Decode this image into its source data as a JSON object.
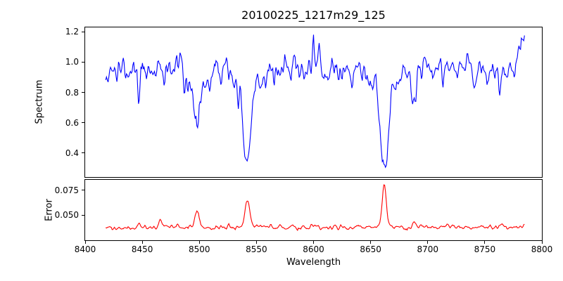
{
  "chart_data": {
    "type": "line",
    "title": "20100225_1217m29_125",
    "xlabel": "Wavelength",
    "xlim": [
      8400,
      8800
    ],
    "x_data_range": [
      8418,
      8785
    ],
    "background_color": "#ffffff",
    "axis_color": "#000000",
    "grid": false,
    "legend": "none",
    "x_ticks": [
      {
        "value": 8400,
        "label": "8400"
      },
      {
        "value": 8450,
        "label": "8450"
      },
      {
        "value": 8500,
        "label": "8500"
      },
      {
        "value": 8550,
        "label": "8550"
      },
      {
        "value": 8600,
        "label": "8600"
      },
      {
        "value": 8650,
        "label": "8650"
      },
      {
        "value": 8700,
        "label": "8700"
      },
      {
        "value": 8750,
        "label": "8750"
      },
      {
        "value": 8800,
        "label": "8800"
      }
    ],
    "panels": [
      {
        "name": "spectrum",
        "ylabel": "Spectrum",
        "ylim": [
          0.24,
          1.23
        ],
        "y_ticks": [
          {
            "value": 0.4,
            "label": "0.4"
          },
          {
            "value": 0.6,
            "label": "0.6"
          },
          {
            "value": 0.8,
            "label": "0.8"
          },
          {
            "value": 1.0,
            "label": "1.0"
          },
          {
            "value": 1.2,
            "label": "1.2"
          }
        ],
        "line_color": "#0000ff",
        "continuum_level": 0.96,
        "noise_sigma": 0.04,
        "absorption_lines": [
          {
            "center": 8498,
            "depth": 0.36,
            "sigma": 2.2
          },
          {
            "center": 8542,
            "depth": 0.55,
            "sigma": 3.2
          },
          {
            "center": 8662,
            "depth": 0.54,
            "sigma": 3.0
          },
          {
            "center": 8688,
            "depth": 0.2,
            "sigma": 1.5
          }
        ],
        "minor_absorption_dips": [
          {
            "center": 8428,
            "depth": 0.1,
            "sigma": 0.8
          },
          {
            "center": 8437,
            "depth": 0.07,
            "sigma": 0.8
          },
          {
            "center": 8447,
            "depth": 0.22,
            "sigma": 1.0
          },
          {
            "center": 8469,
            "depth": 0.17,
            "sigma": 0.9
          },
          {
            "center": 8487,
            "depth": 0.13,
            "sigma": 0.8
          },
          {
            "center": 8509,
            "depth": 0.16,
            "sigma": 0.9
          },
          {
            "center": 8519,
            "depth": 0.12,
            "sigma": 0.8
          },
          {
            "center": 8534,
            "depth": 0.08,
            "sigma": 0.8
          },
          {
            "center": 8566,
            "depth": 0.11,
            "sigma": 0.9
          },
          {
            "center": 8580,
            "depth": 0.1,
            "sigma": 0.8
          },
          {
            "center": 8611,
            "depth": 0.13,
            "sigma": 0.9
          },
          {
            "center": 8625,
            "depth": 0.08,
            "sigma": 0.8
          },
          {
            "center": 8634,
            "depth": 0.1,
            "sigma": 0.8
          },
          {
            "center": 8648,
            "depth": 0.08,
            "sigma": 0.8
          },
          {
            "center": 8672,
            "depth": 0.12,
            "sigma": 0.8
          },
          {
            "center": 8695,
            "depth": 0.1,
            "sigma": 0.8
          },
          {
            "center": 8713,
            "depth": 0.09,
            "sigma": 0.8
          },
          {
            "center": 8726,
            "depth": 0.08,
            "sigma": 0.8
          },
          {
            "center": 8741,
            "depth": 0.11,
            "sigma": 0.9
          },
          {
            "center": 8752,
            "depth": 0.08,
            "sigma": 0.8
          },
          {
            "center": 8763,
            "depth": 0.13,
            "sigma": 0.9
          },
          {
            "center": 8771,
            "depth": 0.09,
            "sigma": 0.8
          }
        ],
        "emission_spikes": [
          {
            "center": 8483,
            "height": 0.1,
            "sigma": 0.8
          },
          {
            "center": 8600,
            "height": 0.2,
            "sigma": 1.0
          },
          {
            "center": 8784,
            "height": 0.2,
            "sigma": 1.8
          }
        ]
      },
      {
        "name": "error",
        "ylabel": "Error",
        "ylim": [
          0.025,
          0.0855
        ],
        "y_ticks": [
          {
            "value": 0.05,
            "label": "0.050"
          },
          {
            "value": 0.075,
            "label": "0.075"
          }
        ],
        "line_color": "#ff0000",
        "baseline_level": 0.038,
        "noise_sigma": 0.0012,
        "peaks": [
          {
            "center": 8447,
            "height": 0.0035,
            "sigma": 1.2
          },
          {
            "center": 8466,
            "height": 0.008,
            "sigma": 1.5
          },
          {
            "center": 8498,
            "height": 0.017,
            "sigma": 1.8
          },
          {
            "center": 8542,
            "height": 0.027,
            "sigma": 2.2
          },
          {
            "center": 8662,
            "height": 0.043,
            "sigma": 1.8
          },
          {
            "center": 8688,
            "height": 0.007,
            "sigma": 1.2
          },
          {
            "center": 8766,
            "height": 0.004,
            "sigma": 1.2
          }
        ]
      }
    ]
  }
}
